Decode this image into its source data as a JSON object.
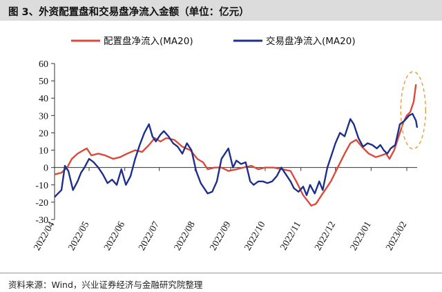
{
  "header": {
    "title": "图 3、外资配置盘和交易盘净流入金额（单位：亿元）"
  },
  "footer": {
    "source": "资料来源：Wind，兴业证券经济与金融研究院整理"
  },
  "chart_data": {
    "type": "line",
    "title": "图 3、外资配置盘和交易盘净流入金额（单位：亿元）",
    "xlabel": "",
    "ylabel": "",
    "ylim": [
      -30,
      60
    ],
    "yticks": [
      "-30",
      "-20",
      "-10",
      "0",
      "10",
      "20",
      "30",
      "40",
      "50",
      "60"
    ],
    "xticks": [
      "2022/04",
      "2022/05",
      "2022/06",
      "2022/07",
      "2022/08",
      "2022/09",
      "2022/10",
      "2022/11",
      "2022/12",
      "2023/01",
      "2023/02"
    ],
    "x_start": "2022-04-01",
    "x_end": "2023-02-10",
    "grid": false,
    "legend": "top",
    "series": [
      {
        "name": "配置盘净流入(MA20)",
        "color": "#d94a38",
        "points": [
          [
            "2022-04-01",
            -4
          ],
          [
            "2022-04-07",
            -3
          ],
          [
            "2022-04-12",
            0
          ],
          [
            "2022-04-16",
            5
          ],
          [
            "2022-04-21",
            8
          ],
          [
            "2022-04-26",
            10
          ],
          [
            "2022-04-29",
            11
          ],
          [
            "2022-05-03",
            7
          ],
          [
            "2022-05-09",
            8
          ],
          [
            "2022-05-15",
            7
          ],
          [
            "2022-05-22",
            5
          ],
          [
            "2022-05-28",
            6
          ],
          [
            "2022-06-03",
            8
          ],
          [
            "2022-06-10",
            10
          ],
          [
            "2022-06-16",
            9
          ],
          [
            "2022-06-22",
            13
          ],
          [
            "2022-06-27",
            17
          ],
          [
            "2022-07-02",
            15
          ],
          [
            "2022-07-07",
            17
          ],
          [
            "2022-07-14",
            16
          ],
          [
            "2022-07-21",
            12
          ],
          [
            "2022-07-28",
            10
          ],
          [
            "2022-08-03",
            5
          ],
          [
            "2022-08-08",
            3
          ],
          [
            "2022-08-12",
            -1
          ],
          [
            "2022-08-18",
            0
          ],
          [
            "2022-08-24",
            0
          ],
          [
            "2022-08-30",
            -2
          ],
          [
            "2022-09-06",
            -1
          ],
          [
            "2022-09-12",
            0
          ],
          [
            "2022-09-19",
            1
          ],
          [
            "2022-09-25",
            -1
          ],
          [
            "2022-10-01",
            0
          ],
          [
            "2022-10-08",
            0
          ],
          [
            "2022-10-16",
            -1
          ],
          [
            "2022-10-23",
            -2
          ],
          [
            "2022-10-28",
            -8
          ],
          [
            "2022-11-03",
            -16
          ],
          [
            "2022-11-10",
            -22
          ],
          [
            "2022-11-14",
            -21
          ],
          [
            "2022-11-20",
            -15
          ],
          [
            "2022-11-27",
            -8
          ],
          [
            "2022-12-03",
            0
          ],
          [
            "2022-12-09",
            8
          ],
          [
            "2022-12-14",
            14
          ],
          [
            "2022-12-19",
            16
          ],
          [
            "2022-12-24",
            12
          ],
          [
            "2022-12-30",
            8
          ],
          [
            "2023-01-05",
            6
          ],
          [
            "2023-01-10",
            7
          ],
          [
            "2023-01-14",
            8
          ],
          [
            "2023-01-17",
            5
          ],
          [
            "2023-01-21",
            10
          ],
          [
            "2023-01-25",
            18
          ],
          [
            "2023-01-29",
            26
          ],
          [
            "2023-02-01",
            30
          ],
          [
            "2023-02-04",
            32
          ],
          [
            "2023-02-07",
            38
          ],
          [
            "2023-02-09",
            48
          ]
        ]
      },
      {
        "name": "交易盘净流入(MA20)",
        "color": "#1c2f8c",
        "points": [
          [
            "2022-04-01",
            -17
          ],
          [
            "2022-04-04",
            -15
          ],
          [
            "2022-04-07",
            -13
          ],
          [
            "2022-04-10",
            1
          ],
          [
            "2022-04-13",
            -2
          ],
          [
            "2022-04-17",
            -13
          ],
          [
            "2022-04-21",
            -8
          ],
          [
            "2022-04-24",
            -3
          ],
          [
            "2022-04-27",
            0
          ],
          [
            "2022-05-01",
            5
          ],
          [
            "2022-05-05",
            3
          ],
          [
            "2022-05-09",
            0
          ],
          [
            "2022-05-13",
            -4
          ],
          [
            "2022-05-17",
            -9
          ],
          [
            "2022-05-21",
            -7
          ],
          [
            "2022-05-25",
            -10
          ],
          [
            "2022-05-29",
            -1
          ],
          [
            "2022-06-02",
            -10
          ],
          [
            "2022-06-06",
            -5
          ],
          [
            "2022-06-10",
            5
          ],
          [
            "2022-06-14",
            13
          ],
          [
            "2022-06-18",
            20
          ],
          [
            "2022-06-22",
            25
          ],
          [
            "2022-06-25",
            18
          ],
          [
            "2022-06-28",
            15
          ],
          [
            "2022-07-02",
            19
          ],
          [
            "2022-07-05",
            21
          ],
          [
            "2022-07-09",
            18
          ],
          [
            "2022-07-13",
            14
          ],
          [
            "2022-07-17",
            12
          ],
          [
            "2022-07-21",
            8
          ],
          [
            "2022-07-25",
            14
          ],
          [
            "2022-07-29",
            10
          ],
          [
            "2022-08-02",
            -2
          ],
          [
            "2022-08-06",
            -9
          ],
          [
            "2022-08-09",
            -12
          ],
          [
            "2022-08-12",
            -15
          ],
          [
            "2022-08-16",
            -14
          ],
          [
            "2022-08-20",
            -8
          ],
          [
            "2022-08-24",
            5
          ],
          [
            "2022-08-27",
            8
          ],
          [
            "2022-08-30",
            11
          ],
          [
            "2022-09-03",
            0
          ],
          [
            "2022-09-06",
            4
          ],
          [
            "2022-09-10",
            2
          ],
          [
            "2022-09-14",
            3
          ],
          [
            "2022-09-18",
            -8
          ],
          [
            "2022-09-21",
            -10
          ],
          [
            "2022-09-25",
            -8
          ],
          [
            "2022-09-29",
            -8
          ],
          [
            "2022-10-03",
            -9
          ],
          [
            "2022-10-07",
            -8
          ],
          [
            "2022-10-11",
            -5
          ],
          [
            "2022-10-15",
            0
          ],
          [
            "2022-10-19",
            -4
          ],
          [
            "2022-10-23",
            -8
          ],
          [
            "2022-10-26",
            -12
          ],
          [
            "2022-10-30",
            -14
          ],
          [
            "2022-11-03",
            -11
          ],
          [
            "2022-11-06",
            -16
          ],
          [
            "2022-11-09",
            -10
          ],
          [
            "2022-11-13",
            -15
          ],
          [
            "2022-11-17",
            -8
          ],
          [
            "2022-11-20",
            -13
          ],
          [
            "2022-11-24",
            0
          ],
          [
            "2022-11-28",
            8
          ],
          [
            "2022-12-01",
            14
          ],
          [
            "2022-12-05",
            20
          ],
          [
            "2022-12-09",
            18
          ],
          [
            "2022-12-14",
            28
          ],
          [
            "2022-12-17",
            25
          ],
          [
            "2022-12-21",
            17
          ],
          [
            "2022-12-25",
            12
          ],
          [
            "2022-12-29",
            14
          ],
          [
            "2023-01-02",
            13
          ],
          [
            "2023-01-06",
            11
          ],
          [
            "2023-01-09",
            13
          ],
          [
            "2023-01-12",
            10
          ],
          [
            "2023-01-15",
            8
          ],
          [
            "2023-01-18",
            11
          ],
          [
            "2023-01-22",
            13
          ],
          [
            "2023-01-26",
            25
          ],
          [
            "2023-01-30",
            27
          ],
          [
            "2023-02-03",
            30
          ],
          [
            "2023-02-06",
            31
          ],
          [
            "2023-02-09",
            27
          ],
          [
            "2023-02-10",
            23
          ]
        ]
      }
    ],
    "annotations": [
      {
        "type": "dashed-ellipse",
        "color": "#e8a33d",
        "around": "series end values (late 2023/02)"
      }
    ]
  }
}
